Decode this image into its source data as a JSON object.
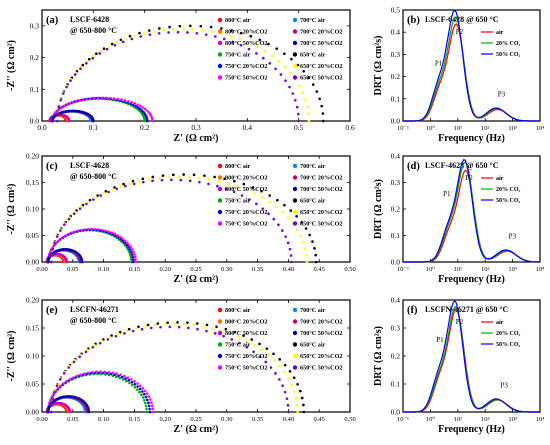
{
  "figure": {
    "nyquist_ylabel": "-Z'' (Ω cm²)",
    "nyquist_xlabel": "Z' (Ω cm²)",
    "drt_ylabel": "DRT (Ω cm²s)",
    "drt_xlabel": "Frequency (Hz)",
    "drt_xticks": [
      "10⁻¹",
      "10⁰",
      "10¹",
      "10²",
      "10³",
      "10⁴"
    ]
  },
  "colors": {
    "800C air": "#ff0000",
    "800C 20%CO2": "#ff6a00",
    "800C 50%CO2": "#cc00cc",
    "750C air": "#00aa00",
    "750C 20%CO2": "#0000ff",
    "750C 50%CO2": "#ff00ff",
    "700C air": "#0088ff",
    "700C 20%CO2": "#cc0066",
    "700C 50%CO2": "#0000aa",
    "650C air": "#000000",
    "650C 20%CO2": "#ffff00",
    "650C 50%CO2": "#7700cc",
    "drt_air": "#ff0000",
    "drt_20": "#00aa00",
    "drt_50": "#0000ff"
  },
  "legend_labels": [
    "800°C air",
    "800°C 20%CO2",
    "800°C 50%CO2",
    "750°C air",
    "750°C 20%CO2",
    "750°C 50%CO2",
    "700°C air",
    "700°C 20%CO2",
    "700°C 50%CO2",
    "650°C air",
    "650°C 20%CO2",
    "650°C 50%CO2"
  ],
  "legend_keys": [
    "800C air",
    "800C 20%CO2",
    "800C 50%CO2",
    "750C air",
    "750C 20%CO2",
    "750C 50%CO2",
    "700C air",
    "700C 20%CO2",
    "700C 50%CO2",
    "650C air",
    "650C 20%CO2",
    "650C 50%CO2"
  ],
  "drt_legend": [
    "air",
    "20% CO₂",
    "50% CO₂"
  ],
  "chart_data": [
    {
      "panel": "(a)",
      "type": "scatter",
      "title": "LSCF-6428",
      "subtitle": "@ 650-800 °C",
      "xlim": [
        0,
        0.6
      ],
      "ylim": [
        0,
        0.35
      ],
      "xticks": [
        0.0,
        0.1,
        0.2,
        0.3,
        0.4,
        0.5,
        0.6
      ],
      "yticks": [
        0.0,
        0.1,
        0.2,
        0.3
      ],
      "series": [
        {
          "key": "800C air",
          "r0": 0.015,
          "r1": 0.047,
          "peak": 0.018
        },
        {
          "key": "800C 20%CO2",
          "r0": 0.015,
          "r1": 0.05,
          "peak": 0.019
        },
        {
          "key": "800C 50%CO2",
          "r0": 0.015,
          "r1": 0.053,
          "peak": 0.02
        },
        {
          "key": "750C air",
          "r0": 0.02,
          "r1": 0.2,
          "peak": 0.07
        },
        {
          "key": "750C 20%CO2",
          "r0": 0.02,
          "r1": 0.205,
          "peak": 0.072
        },
        {
          "key": "750C 50%CO2",
          "r0": 0.02,
          "r1": 0.215,
          "peak": 0.073
        },
        {
          "key": "700C air",
          "r0": 0.02,
          "r1": 0.095,
          "peak": 0.03
        },
        {
          "key": "700C 20%CO2",
          "r0": 0.02,
          "r1": 0.098,
          "peak": 0.031
        },
        {
          "key": "700C 50%CO2",
          "r0": 0.02,
          "r1": 0.1,
          "peak": 0.032
        },
        {
          "key": "650C air",
          "r0": 0.03,
          "r1": 0.548,
          "peak": 0.3
        },
        {
          "key": "650C 20%CO2",
          "r0": 0.03,
          "r1": 0.52,
          "peak": 0.29
        },
        {
          "key": "650C 50%CO2",
          "r0": 0.03,
          "r1": 0.5,
          "peak": 0.28
        }
      ]
    },
    {
      "panel": "(b)",
      "type": "line",
      "title": "LSCF-6428 @ 650 °C",
      "ylim": [
        0,
        0.5
      ],
      "yticks": [
        0.0,
        0.1,
        0.2,
        0.3,
        0.4,
        0.5
      ],
      "xlog": [
        -1,
        4
      ],
      "peaks": {
        "P1": 0.3,
        "P2": 0.95,
        "P3": 2.3
      },
      "series": [
        {
          "key": "drt_air",
          "name": "air",
          "center": 0.95,
          "height": 0.43
        },
        {
          "key": "drt_20",
          "name": "20% CO₂",
          "center": 0.93,
          "height": 0.46
        },
        {
          "key": "drt_50",
          "name": "50% CO₂",
          "center": 0.9,
          "height": 0.49
        }
      ]
    },
    {
      "panel": "(c)",
      "type": "scatter",
      "title": "LSCF-4628",
      "subtitle": "@ 650-800 °C",
      "xlim": [
        0,
        0.5
      ],
      "ylim": [
        0,
        0.2
      ],
      "xticks": [
        0.0,
        0.05,
        0.1,
        0.15,
        0.2,
        0.25,
        0.3,
        0.35,
        0.4,
        0.45,
        0.5
      ],
      "yticks": [
        0.0,
        0.05,
        0.1,
        0.15,
        0.2
      ],
      "series": [
        {
          "key": "800C air",
          "r0": 0.008,
          "r1": 0.035,
          "peak": 0.013
        },
        {
          "key": "800C 20%CO2",
          "r0": 0.008,
          "r1": 0.037,
          "peak": 0.014
        },
        {
          "key": "800C 50%CO2",
          "r0": 0.008,
          "r1": 0.04,
          "peak": 0.015
        },
        {
          "key": "750C air",
          "r0": 0.01,
          "r1": 0.145,
          "peak": 0.06
        },
        {
          "key": "750C 20%CO2",
          "r0": 0.01,
          "r1": 0.148,
          "peak": 0.061
        },
        {
          "key": "750C 50%CO2",
          "r0": 0.01,
          "r1": 0.152,
          "peak": 0.062
        },
        {
          "key": "700C air",
          "r0": 0.01,
          "r1": 0.06,
          "peak": 0.022
        },
        {
          "key": "700C 20%CO2",
          "r0": 0.01,
          "r1": 0.062,
          "peak": 0.023
        },
        {
          "key": "700C 50%CO2",
          "r0": 0.01,
          "r1": 0.065,
          "peak": 0.024
        },
        {
          "key": "650C air",
          "r0": 0.015,
          "r1": 0.445,
          "peak": 0.165
        },
        {
          "key": "650C 20%CO2",
          "r0": 0.015,
          "r1": 0.43,
          "peak": 0.16
        },
        {
          "key": "650C 50%CO2",
          "r0": 0.015,
          "r1": 0.405,
          "peak": 0.155
        }
      ]
    },
    {
      "panel": "(d)",
      "type": "line",
      "title": "LSCF-4628 @ 650 °C",
      "ylim": [
        0,
        0.4
      ],
      "yticks": [
        0.0,
        0.1,
        0.2,
        0.3,
        0.4
      ],
      "xlog": [
        -1,
        4
      ],
      "peaks": {
        "P1": 0.6,
        "P2": 1.3,
        "P3": 2.7
      },
      "series": [
        {
          "key": "drt_air",
          "name": "air",
          "center": 1.3,
          "height": 0.34
        },
        {
          "key": "drt_20",
          "name": "20% CO₂",
          "center": 1.28,
          "height": 0.37
        },
        {
          "key": "drt_50",
          "name": "50% CO₂",
          "center": 1.25,
          "height": 0.38
        }
      ]
    },
    {
      "panel": "(e)",
      "type": "scatter",
      "title": "LSCFN-46271",
      "subtitle": "@ 650-800 °C",
      "xlim": [
        0,
        0.5
      ],
      "ylim": [
        0,
        0.2
      ],
      "xticks": [
        0.0,
        0.05,
        0.1,
        0.15,
        0.2,
        0.25,
        0.3,
        0.35,
        0.4,
        0.45,
        0.5
      ],
      "yticks": [
        0.0,
        0.05,
        0.1,
        0.15,
        0.2
      ],
      "series": [
        {
          "key": "800C air",
          "r0": 0.008,
          "r1": 0.04,
          "peak": 0.014
        },
        {
          "key": "800C 20%CO2",
          "r0": 0.008,
          "r1": 0.042,
          "peak": 0.015
        },
        {
          "key": "800C 50%CO2",
          "r0": 0.008,
          "r1": 0.045,
          "peak": 0.016
        },
        {
          "key": "750C air",
          "r0": 0.01,
          "r1": 0.17,
          "peak": 0.068
        },
        {
          "key": "750C 20%CO2",
          "r0": 0.01,
          "r1": 0.175,
          "peak": 0.07
        },
        {
          "key": "750C 50%CO2",
          "r0": 0.01,
          "r1": 0.18,
          "peak": 0.072
        },
        {
          "key": "700C air",
          "r0": 0.01,
          "r1": 0.07,
          "peak": 0.026
        },
        {
          "key": "700C 20%CO2",
          "r0": 0.01,
          "r1": 0.073,
          "peak": 0.027
        },
        {
          "key": "700C 50%CO2",
          "r0": 0.01,
          "r1": 0.076,
          "peak": 0.028
        },
        {
          "key": "650C air",
          "r0": 0.015,
          "r1": 0.425,
          "peak": 0.16
        },
        {
          "key": "650C 20%CO2",
          "r0": 0.015,
          "r1": 0.415,
          "peak": 0.157
        },
        {
          "key": "650C 50%CO2",
          "r0": 0.015,
          "r1": 0.4,
          "peak": 0.152
        }
      ]
    },
    {
      "panel": "(f)",
      "type": "line",
      "title": "LSCFN-46271 @ 650 °C",
      "ylim": [
        0,
        0.4
      ],
      "yticks": [
        0.0,
        0.1,
        0.2,
        0.3,
        0.4
      ],
      "xlog": [
        -1,
        4
      ],
      "peaks": {
        "P1": 0.35,
        "P2": 0.95,
        "P3": 2.4
      },
      "series": [
        {
          "key": "drt_air",
          "name": "air",
          "center": 0.95,
          "height": 0.36
        },
        {
          "key": "drt_20",
          "name": "20% CO₂",
          "center": 0.93,
          "height": 0.37
        },
        {
          "key": "drt_50",
          "name": "50% CO₂",
          "center": 0.9,
          "height": 0.39
        }
      ]
    }
  ]
}
